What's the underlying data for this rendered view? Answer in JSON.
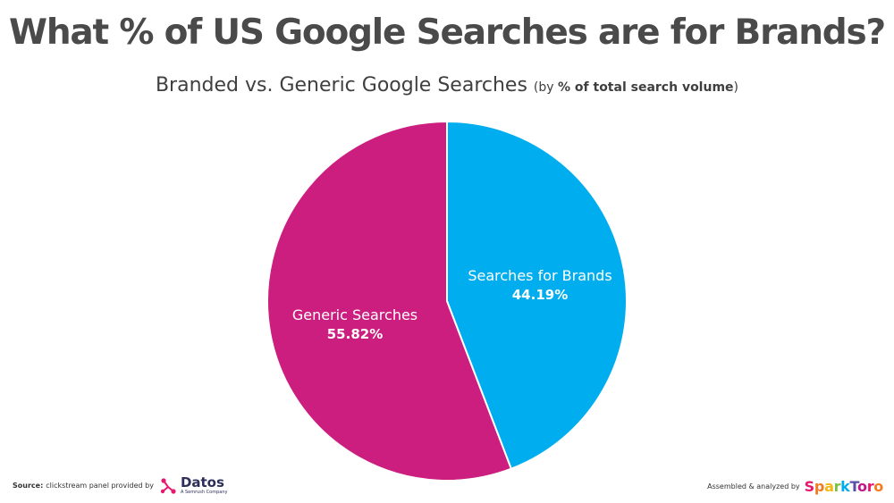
{
  "title": "What % of US Google Searches are for Brands?",
  "subtitle": {
    "main": "Branded vs. Generic Google Searches",
    "note_prefix": "(by ",
    "note_bold": "% of total search volume",
    "note_suffix": ")"
  },
  "chart_data": {
    "type": "pie",
    "title": "What % of US Google Searches are for Brands?",
    "subtitle": "Branded vs. Generic Google Searches (by % of total search volume)",
    "slices": [
      {
        "label": "Searches for Brands",
        "value": 44.19,
        "display": "44.19%",
        "color": "#00aeef"
      },
      {
        "label": "Generic Searches",
        "value": 55.82,
        "display": "55.82%",
        "color": "#cc1e7f"
      }
    ],
    "start_angle_deg": 0,
    "direction": "clockwise",
    "legend": "none"
  },
  "footer": {
    "source_label": "Source:",
    "source_text": "clickstream panel provided by",
    "datos_name": "Datos",
    "datos_sub": "A Semrush Company",
    "assembled_text": "Assembled & analyzed by",
    "sparktoro_letters": [
      "S",
      "p",
      "a",
      "r",
      "k",
      "T",
      "o",
      "r",
      "o"
    ]
  },
  "colors": {
    "brands": "#00aeef",
    "generic": "#cc1e7f",
    "title": "#4a4a4a"
  }
}
